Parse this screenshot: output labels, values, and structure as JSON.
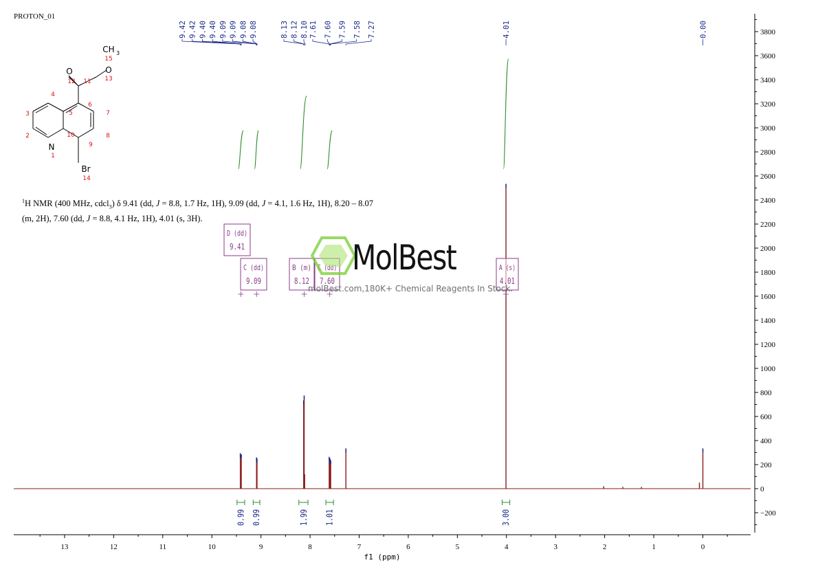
{
  "experiment_label": "PROTON_01",
  "description": {
    "nucleus_sup": "1",
    "nucleus": "H NMR (400 MHz, cdcl",
    "solvent_sub": "3",
    "text_1": ") δ 9.41 (dd, ",
    "j": "J",
    "text_2": " = 8.8, 1.7 Hz, 1H), 9.09 (dd, ",
    "text_3": " = 4.1, 1.6 Hz, 1H), 8.20 – 8.07",
    "text_4": "(m, 2H), 7.60 (dd, ",
    "text_5": " = 8.8, 4.1 Hz, 1H), 4.01 (s, 3H)."
  },
  "watermark": {
    "brand": "MolBest",
    "tagline": "molBest.com,180K+ Chemical Reagents In Stock."
  },
  "molecule": {
    "atoms": [
      {
        "label": "CH",
        "sub": "3",
        "num": "15"
      },
      {
        "label": "O",
        "num": "13"
      },
      {
        "label": "O",
        "num": "12"
      },
      {
        "label": "N",
        "num": "1"
      },
      {
        "label": "Br",
        "num": "14"
      }
    ],
    "numbers": [
      "11",
      "6",
      "7",
      "8",
      "9",
      "10",
      "5",
      "4",
      "3",
      "2"
    ]
  },
  "chart_data": {
    "type": "line",
    "xlabel": "f1  (ppm)",
    "xlim": [
      13.8,
      -1.0
    ],
    "x_reversed": true,
    "ylim": [
      -370,
      3950
    ],
    "x_ticks": [
      13,
      12,
      11,
      10,
      9,
      8,
      7,
      6,
      5,
      4,
      3,
      2,
      1,
      0
    ],
    "y_ticks": [
      -200,
      0,
      200,
      400,
      600,
      800,
      1000,
      1200,
      1400,
      1600,
      1800,
      2000,
      2200,
      2400,
      2600,
      2800,
      3000,
      3200,
      3400,
      3600,
      3800
    ],
    "peaks": [
      {
        "ppm": 9.42,
        "height": 260
      },
      {
        "ppm": 9.4,
        "height": 250
      },
      {
        "ppm": 9.09,
        "height": 225
      },
      {
        "ppm": 9.08,
        "height": 215
      },
      {
        "ppm": 8.13,
        "height": 700
      },
      {
        "ppm": 8.12,
        "height": 740
      },
      {
        "ppm": 8.11,
        "height": 120
      },
      {
        "ppm": 7.61,
        "height": 230
      },
      {
        "ppm": 7.6,
        "height": 220
      },
      {
        "ppm": 7.59,
        "height": 210
      },
      {
        "ppm": 7.58,
        "height": 200
      },
      {
        "ppm": 7.27,
        "height": 300
      },
      {
        "ppm": 4.01,
        "height": 2500
      },
      {
        "ppm": 2.02,
        "height": 20
      },
      {
        "ppm": 1.63,
        "height": 15
      },
      {
        "ppm": 1.25,
        "height": 15
      },
      {
        "ppm": 0.07,
        "height": 50
      },
      {
        "ppm": 0.0,
        "height": 300
      }
    ],
    "peak_labels": [
      "9.42",
      "9.42",
      "9.40",
      "9.40",
      "9.09",
      "9.09",
      "9.08",
      "9.08",
      "8.13",
      "8.12",
      "8.10",
      "7.61",
      "7.60",
      "7.59",
      "7.58",
      "7.27"
    ],
    "peak_label_positions": [
      9.42,
      9.42,
      9.4,
      9.4,
      9.09,
      9.09,
      9.08,
      9.08,
      8.13,
      8.12,
      8.1,
      7.61,
      7.6,
      7.59,
      7.58,
      7.27
    ],
    "single_labels": [
      {
        "ppm": 4.01,
        "label": "4.01"
      },
      {
        "ppm": 0.0,
        "label": "0.00"
      }
    ],
    "multiplets": [
      {
        "label": "D (dd)",
        "shift": "9.41",
        "ppm": 9.41
      },
      {
        "label": "C (dd)",
        "shift": "9.09",
        "ppm": 9.09
      },
      {
        "label": "B (m)",
        "shift": "8.12",
        "ppm": 8.12
      },
      {
        "label": "E (dd)",
        "shift": "7.60",
        "ppm": 7.6
      },
      {
        "label": "A (s)",
        "shift": "4.01",
        "ppm": 4.01
      }
    ],
    "integrals": [
      {
        "ppm_from": 9.46,
        "ppm_to": 9.36,
        "value": "0.99",
        "center": 9.41,
        "rise": 300
      },
      {
        "ppm_from": 9.13,
        "ppm_to": 9.05,
        "value": "0.99",
        "center": 9.09,
        "rise": 300
      },
      {
        "ppm_from": 8.2,
        "ppm_to": 8.07,
        "value": "1.99",
        "center": 8.13,
        "rise": 580
      },
      {
        "ppm_from": 7.65,
        "ppm_to": 7.55,
        "value": "1.01",
        "center": 7.6,
        "rise": 300
      },
      {
        "ppm_from": 4.06,
        "ppm_to": 3.96,
        "value": "3.00",
        "center": 4.01,
        "rise": 880
      }
    ],
    "colors": {
      "spectrum": "#8b1a1a",
      "peak_label": "#1a2a8b",
      "integral": "#2e8b2e",
      "multiplet": "#8b3a8b",
      "axis": "#000000"
    }
  }
}
